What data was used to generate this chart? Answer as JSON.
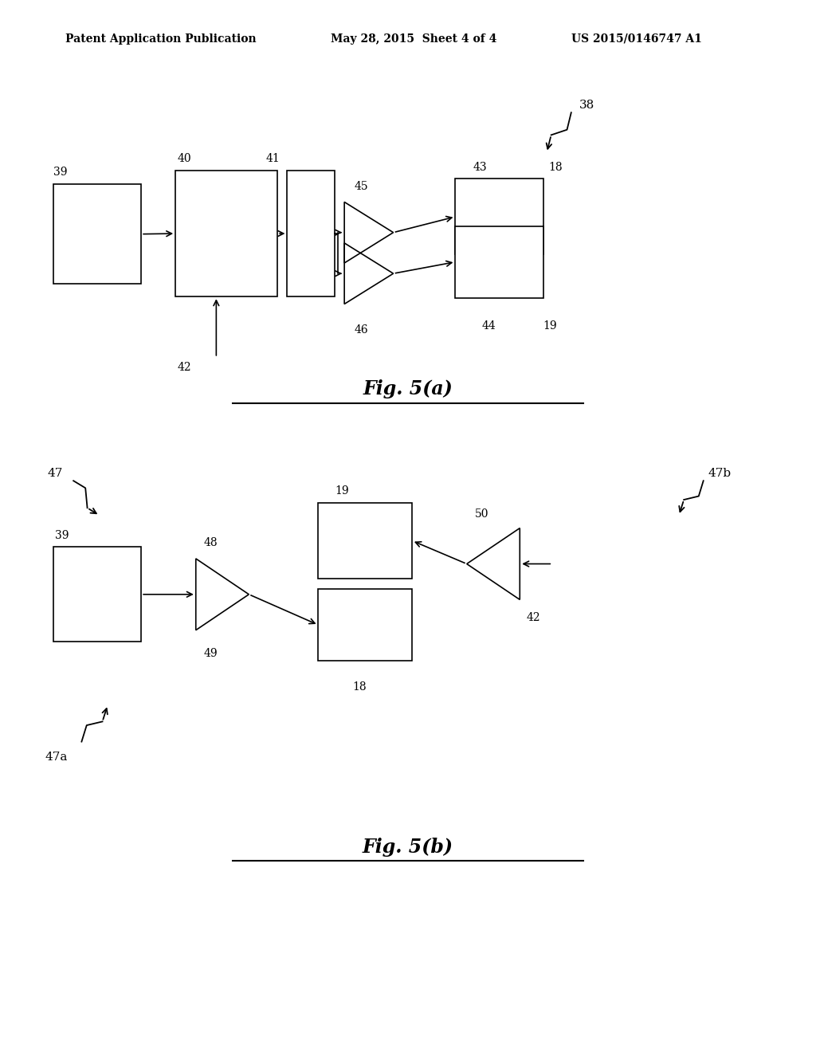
{
  "bg_color": "#ffffff",
  "header_left": "Patent Application Publication",
  "header_mid": "May 28, 2015  Sheet 4 of 4",
  "header_right": "US 2015/0146747 A1",
  "fig_a_title": "Fig. 5(a)",
  "fig_b_title": "Fig. 5(b)"
}
